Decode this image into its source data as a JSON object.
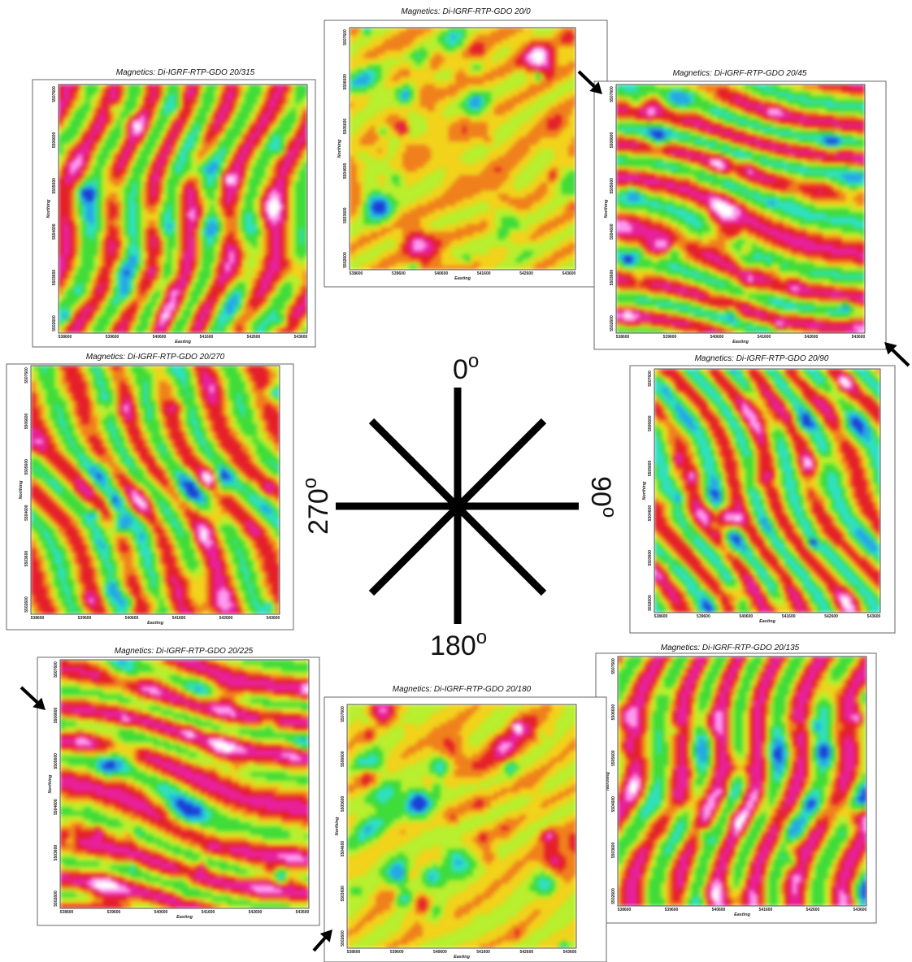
{
  "panels": [
    {
      "id": "p0",
      "title": "Magnetics: Di-IGRF-RTP-GDO 20/0",
      "seed": 11,
      "angle": 0
    },
    {
      "id": "p45",
      "title": "Magnetics: Di-IGRF-RTP-GDO 20/45",
      "seed": 23,
      "angle": 45
    },
    {
      "id": "p90",
      "title": "Magnetics: Di-IGRF-RTP-GDO 20/90",
      "seed": 37,
      "angle": 90
    },
    {
      "id": "p135",
      "title": "Magnetics: Di-IGRF-RTP-GDO 20/135",
      "seed": 41,
      "angle": 135
    },
    {
      "id": "p180",
      "title": "Magnetics: Di-IGRF-RTP-GDO 20/180",
      "seed": 53,
      "angle": 180
    },
    {
      "id": "p225",
      "title": "Magnetics: Di-IGRF-RTP-GDO 20/225",
      "seed": 67,
      "angle": 225
    },
    {
      "id": "p270",
      "title": "Magnetics: Di-IGRF-RTP-GDO 20/270",
      "seed": 71,
      "angle": 270
    },
    {
      "id": "p315",
      "title": "Magnetics: Di-IGRF-RTP-GDO 20/315",
      "seed": 83,
      "angle": 315
    }
  ],
  "x_ticks": [
    "538600",
    "539600",
    "540600",
    "541600",
    "542600",
    "543600"
  ],
  "y_ticks": [
    "5507600",
    "5506600",
    "5505600",
    "5504600",
    "5503600",
    "5502600"
  ],
  "x_axis_label": "Easting",
  "y_axis_label": "Northing",
  "compass": {
    "north": "0o",
    "east": "90o",
    "south": "180o",
    "west": "270o"
  },
  "colors": {
    "palette": [
      "#1a3fd6",
      "#25a7e8",
      "#2fe0c0",
      "#3fdc3a",
      "#b8ef2e",
      "#f2d21b",
      "#f0801c",
      "#e51f2a",
      "#e8209a",
      "#ff9bf0",
      "#ffffff"
    ]
  }
}
